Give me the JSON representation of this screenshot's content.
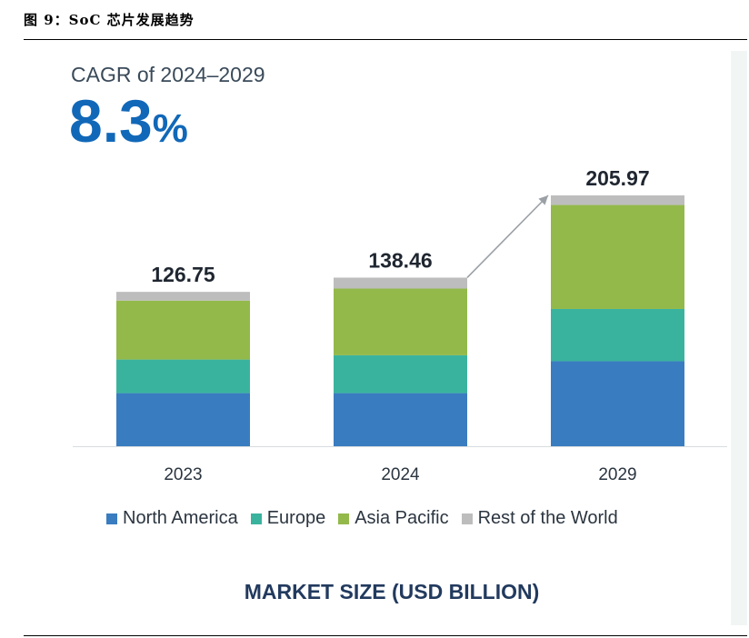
{
  "figure_title": "图 9：SoC 芯片发展趋势",
  "cagr": {
    "label": "CAGR of 2024–2029",
    "value": "8.3",
    "unit": "%"
  },
  "chart_data": {
    "type": "bar",
    "stacked": true,
    "categories": [
      "2023",
      "2024",
      "2029"
    ],
    "totals": [
      126.75,
      138.46,
      205.97
    ],
    "total_labels": [
      "126.75",
      "138.46",
      "205.97"
    ],
    "series": [
      {
        "name": "North America",
        "color": "#3a7cc0",
        "values": [
          43.6,
          43.6,
          69.8
        ]
      },
      {
        "name": "Europe",
        "color": "#3ab39e",
        "values": [
          27.6,
          31.1,
          42.9
        ]
      },
      {
        "name": "Asia Pacific",
        "color": "#93b94b",
        "values": [
          48.4,
          54.8,
          85.4
        ]
      },
      {
        "name": "Rest of the World",
        "color": "#bdbdbd",
        "values": [
          7.15,
          8.96,
          7.87
        ]
      }
    ],
    "xlabel": "MARKET SIZE (USD BILLION)",
    "ylabel": "",
    "ylim": [
      0,
      210
    ],
    "legend": "bottom",
    "grid": false,
    "annotation": "growth arrow from 2024 to 2029"
  }
}
